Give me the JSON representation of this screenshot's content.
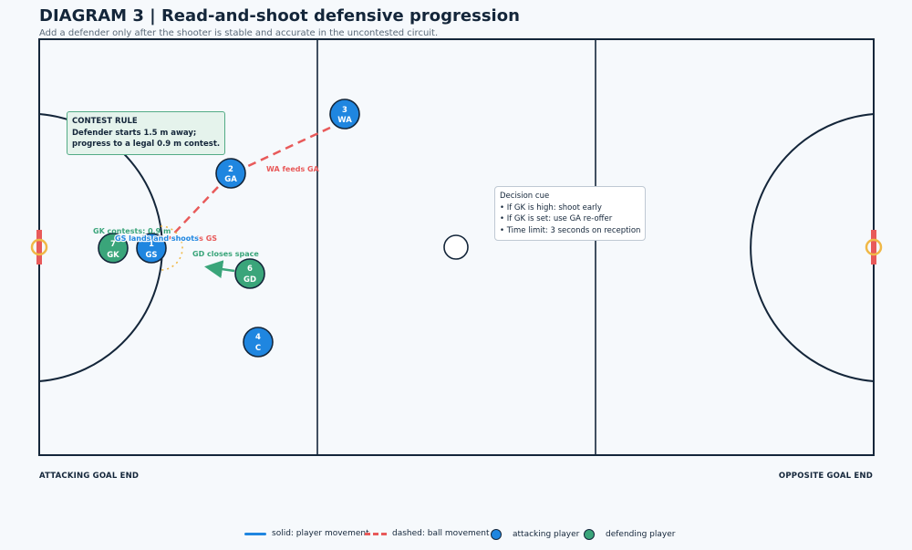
{
  "header": {
    "title": "DIAGRAM 3 | Read-and-shoot defensive progression",
    "subtitle": "Add a defender only after the shooter is stable and accurate in the uncontested circuit."
  },
  "colors": {
    "attack": "#1f86e0",
    "defend": "#3aa57a",
    "ball": "#e85a5a",
    "lines": "#14263a",
    "post": "#f0b847"
  },
  "players": [
    {
      "id": "wa",
      "number": "3",
      "role": "WA",
      "team": "attack"
    },
    {
      "id": "ga",
      "number": "2",
      "role": "GA",
      "team": "attack"
    },
    {
      "id": "gs",
      "number": "1",
      "role": "GS",
      "team": "attack"
    },
    {
      "id": "gk",
      "number": "7",
      "role": "GK",
      "team": "defend"
    },
    {
      "id": "gd",
      "number": "6",
      "role": "GD",
      "team": "defend"
    },
    {
      "id": "c",
      "number": "4",
      "role": "C",
      "team": "attack"
    }
  ],
  "annotations": {
    "wa_feeds": "WA feeds GA",
    "feeds_gs": "eds GS",
    "gk_contests": "GK contests: 0.9 m",
    "gs_lands": "GS lands and shoots",
    "gd_closes": "GD closes space"
  },
  "contest_rule": {
    "heading": "CONTEST RULE",
    "line1": "Defender starts 1.5 m away;",
    "line2": "progress to a legal 0.9 m contest."
  },
  "decision_cue": {
    "heading": "Decision cue",
    "items": [
      "• If GK is high: shoot early",
      "• If GK is set: use GA re-offer",
      "• Time limit: 3 seconds on reception"
    ]
  },
  "court_labels": {
    "left_end": "ATTACKING GOAL END",
    "right_end": "OPPOSITE GOAL END"
  },
  "legend": {
    "solid": "solid: player movement",
    "dashed": "dashed: ball movement",
    "attacking": "attacking player",
    "defending": "defending player"
  }
}
